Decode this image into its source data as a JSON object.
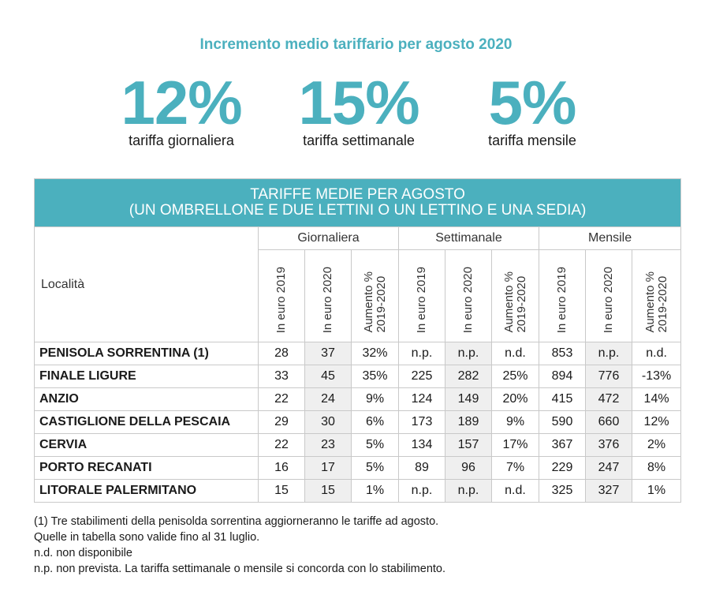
{
  "headline": "Incremento medio tariffario per agosto 2020",
  "stats": [
    {
      "value": "12%",
      "label": "tariffa giornaliera"
    },
    {
      "value": "15%",
      "label": "tariffa settimanale"
    },
    {
      "value": "5%",
      "label": "tariffa mensile"
    }
  ],
  "table": {
    "title_line1": "TARIFFE MEDIE PER AGOSTO",
    "title_line2": "(UN OMBRELLONE E DUE LETTINI O UN LETTINO E UNA SEDIA)",
    "location_header": "Località",
    "groups": [
      "Giornaliera",
      "Settimanale",
      "Mensile"
    ],
    "subheaders": [
      "In euro 2019",
      "In euro 2020",
      "Aumento %\n2019-2020"
    ]
  },
  "chart_data": {
    "type": "table",
    "title": "TARIFFE MEDIE PER AGOSTO (UN OMBRELLONE E DUE LETTINI O UN LETTINO E UNA SEDIA)",
    "columns": [
      "Località",
      "Giornaliera In euro 2019",
      "Giornaliera In euro 2020",
      "Giornaliera Aumento % 2019-2020",
      "Settimanale In euro 2019",
      "Settimanale In euro 2020",
      "Settimanale Aumento % 2019-2020",
      "Mensile In euro 2019",
      "Mensile In euro 2020",
      "Mensile Aumento % 2019-2020"
    ],
    "rows": [
      [
        "PENISOLA SORRENTINA (1)",
        "28",
        "37",
        "32%",
        "n.p.",
        "n.p.",
        "n.d.",
        "853",
        "n.p.",
        "n.d."
      ],
      [
        "FINALE LIGURE",
        "33",
        "45",
        "35%",
        "225",
        "282",
        "25%",
        "894",
        "776",
        "-13%"
      ],
      [
        "ANZIO",
        "22",
        "24",
        "9%",
        "124",
        "149",
        "20%",
        "415",
        "472",
        "14%"
      ],
      [
        "CASTIGLIONE DELLA PESCAIA",
        "29",
        "30",
        "6%",
        "173",
        "189",
        "9%",
        "590",
        "660",
        "12%"
      ],
      [
        "CERVIA",
        "22",
        "23",
        "5%",
        "134",
        "157",
        "17%",
        "367",
        "376",
        "2%"
      ],
      [
        "PORTO RECANATI",
        "16",
        "17",
        "5%",
        "89",
        "96",
        "7%",
        "229",
        "247",
        "8%"
      ],
      [
        "LITORALE PALERMITANO",
        "15",
        "15",
        "1%",
        "n.p.",
        "n.p.",
        "n.d.",
        "325",
        "327",
        "1%"
      ]
    ]
  },
  "notes": [
    "(1) Tre stabilimenti della penisolda sorrentina aggiorneranno le tariffe ad agosto.",
    "Quelle in tabella sono valide fino al 31 luglio.",
    "n.d. non disponibile",
    "n.p. non prevista. La tariffa settimanale o mensile si concorda con lo stabilimento."
  ],
  "colors": {
    "accent": "#4bb0be",
    "shade": "#efefef",
    "border": "#c9c9c9"
  }
}
